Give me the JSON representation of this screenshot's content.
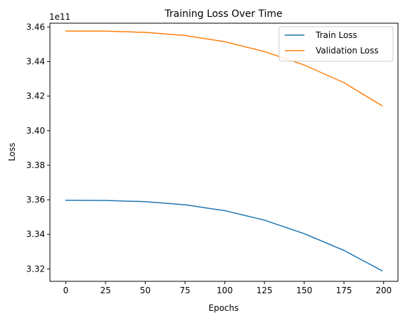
{
  "chart_data": {
    "type": "line",
    "title": "Training Loss Over Time",
    "xlabel": "Epochs",
    "ylabel": "Loss",
    "y_offset_label": "1e11",
    "xlim": [
      -10,
      209
    ],
    "ylim": [
      3.3128,
      3.4622
    ],
    "xticks": [
      0,
      25,
      50,
      75,
      100,
      125,
      150,
      175,
      200
    ],
    "yticks": [
      3.32,
      3.34,
      3.36,
      3.38,
      3.4,
      3.42,
      3.44,
      3.46
    ],
    "ytick_labels": [
      "3.32",
      "3.34",
      "3.36",
      "3.38",
      "3.40",
      "3.42",
      "3.44",
      "3.46"
    ],
    "grid": false,
    "legend_position": "top-right",
    "series": [
      {
        "name": "Train Loss",
        "color": "#1f77b4",
        "x": [
          0,
          25,
          50,
          75,
          100,
          125,
          150,
          175,
          199
        ],
        "y": [
          3.3597,
          3.3596,
          3.3589,
          3.3571,
          3.3537,
          3.3482,
          3.3404,
          3.3307,
          3.3189
        ]
      },
      {
        "name": "Validation Loss",
        "color": "#ff7f0e",
        "x": [
          0,
          25,
          50,
          75,
          100,
          125,
          150,
          175,
          199
        ],
        "y": [
          3.4577,
          3.4576,
          3.4569,
          3.4551,
          3.4515,
          3.4458,
          3.438,
          3.4278,
          3.4144
        ]
      }
    ]
  }
}
